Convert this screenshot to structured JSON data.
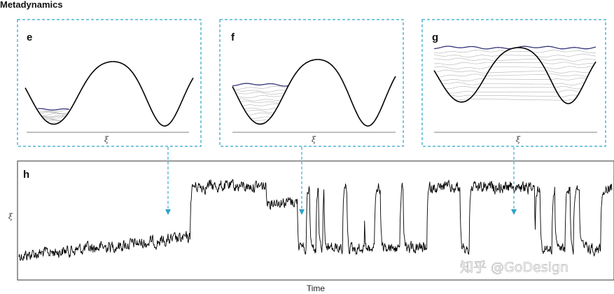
{
  "figure": {
    "title": "Metadynamics",
    "watermark": "知乎 @GoDesign",
    "colors": {
      "panel_border": "#2aa3c9",
      "arrow": "#2aa3c9",
      "potential": "#000000",
      "bias_top": "#34347a",
      "bias_fill": "#9a9a9a",
      "trace": "#000000"
    }
  },
  "panels": {
    "e": {
      "label": "e",
      "axis_symbol": "ξ",
      "fill_level": 0.25
    },
    "f": {
      "label": "f",
      "axis_symbol": "ξ",
      "fill_level": 0.62
    },
    "g": {
      "label": "g",
      "axis_symbol": "ξ",
      "fill_level": 1.0
    }
  },
  "trace_panel": {
    "label": "h",
    "y_label": "ξ",
    "x_label": "Time"
  }
}
